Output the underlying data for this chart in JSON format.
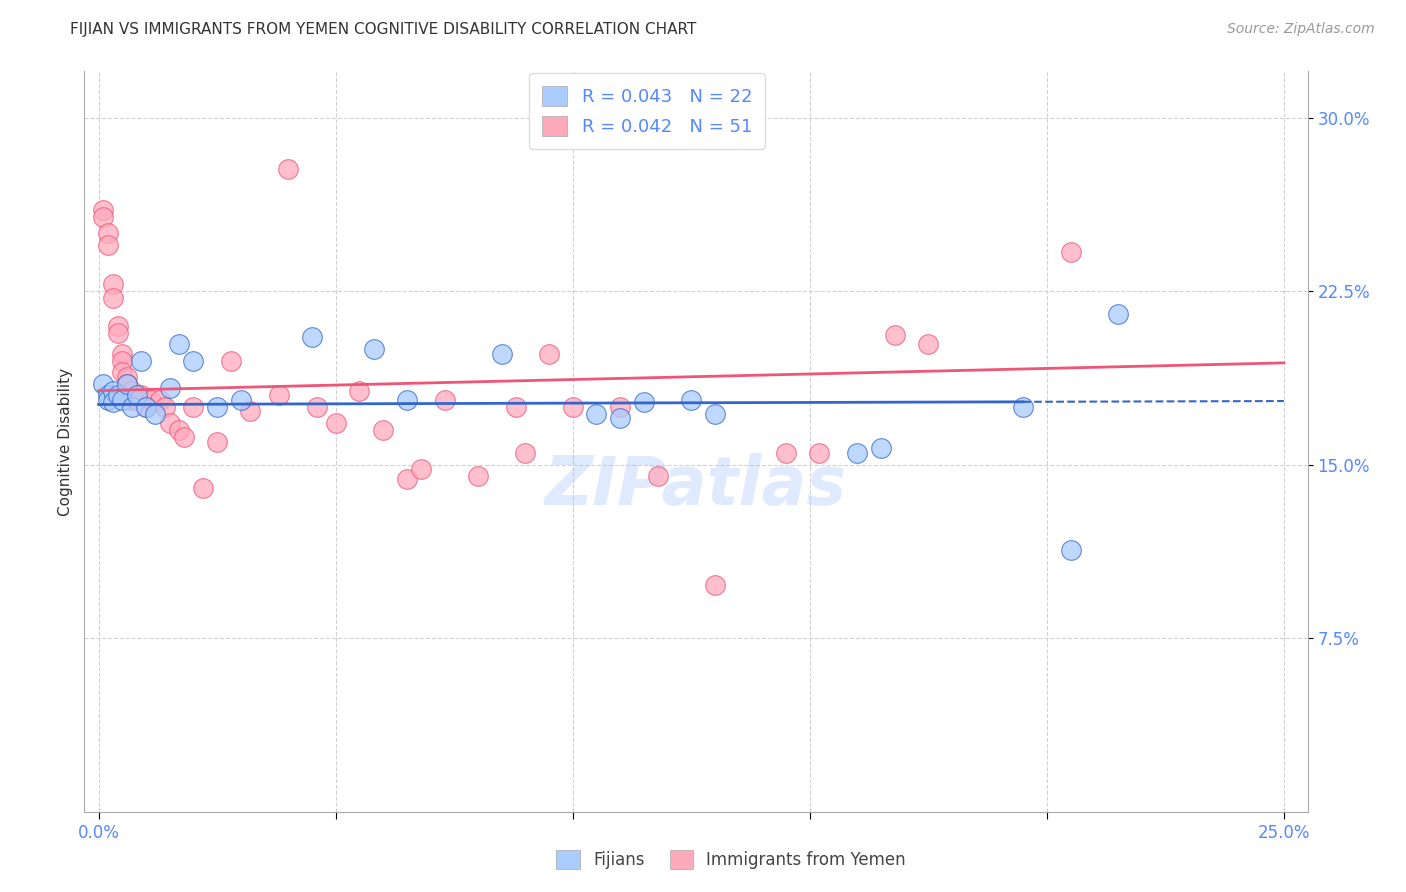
{
  "title": "FIJIAN VS IMMIGRANTS FROM YEMEN COGNITIVE DISABILITY CORRELATION CHART",
  "source": "Source: ZipAtlas.com",
  "ylabel": "Cognitive Disability",
  "xlim": [
    -0.003,
    0.255
  ],
  "ylim": [
    0.0,
    0.32
  ],
  "yticks": [
    0.075,
    0.15,
    0.225,
    0.3
  ],
  "ytick_labels": [
    "7.5%",
    "15.0%",
    "22.5%",
    "30.0%"
  ],
  "xticks": [
    0.0,
    0.05,
    0.1,
    0.15,
    0.2,
    0.25
  ],
  "xtick_labels": [
    "0.0%",
    "",
    "",
    "",
    "",
    "25.0%"
  ],
  "grid_color": "#cccccc",
  "title_color": "#333333",
  "axis_color": "#5588ff",
  "blue_color": "#aaccff",
  "pink_color": "#ffaabb",
  "blue_line_color": "#3366cc",
  "pink_line_color": "#ee5577",
  "blue_line_solid_end": 0.195,
  "blue_line_y0": 0.176,
  "blue_line_y1": 0.1775,
  "pink_line_y0": 0.182,
  "pink_line_y1": 0.194,
  "fijian_points": [
    [
      0.001,
      0.185
    ],
    [
      0.002,
      0.18
    ],
    [
      0.002,
      0.178
    ],
    [
      0.003,
      0.182
    ],
    [
      0.003,
      0.177
    ],
    [
      0.004,
      0.18
    ],
    [
      0.005,
      0.178
    ],
    [
      0.006,
      0.185
    ],
    [
      0.007,
      0.175
    ],
    [
      0.008,
      0.18
    ],
    [
      0.009,
      0.195
    ],
    [
      0.01,
      0.175
    ],
    [
      0.012,
      0.172
    ],
    [
      0.015,
      0.183
    ],
    [
      0.017,
      0.202
    ],
    [
      0.02,
      0.195
    ],
    [
      0.025,
      0.175
    ],
    [
      0.03,
      0.178
    ],
    [
      0.045,
      0.205
    ],
    [
      0.058,
      0.2
    ],
    [
      0.065,
      0.178
    ],
    [
      0.085,
      0.198
    ],
    [
      0.105,
      0.172
    ],
    [
      0.11,
      0.17
    ],
    [
      0.115,
      0.177
    ],
    [
      0.125,
      0.178
    ],
    [
      0.13,
      0.172
    ],
    [
      0.16,
      0.155
    ],
    [
      0.165,
      0.157
    ],
    [
      0.195,
      0.175
    ],
    [
      0.205,
      0.113
    ],
    [
      0.215,
      0.215
    ]
  ],
  "yemen_points": [
    [
      0.001,
      0.26
    ],
    [
      0.001,
      0.257
    ],
    [
      0.002,
      0.25
    ],
    [
      0.002,
      0.245
    ],
    [
      0.003,
      0.228
    ],
    [
      0.003,
      0.222
    ],
    [
      0.004,
      0.21
    ],
    [
      0.004,
      0.207
    ],
    [
      0.005,
      0.198
    ],
    [
      0.005,
      0.195
    ],
    [
      0.005,
      0.19
    ],
    [
      0.006,
      0.188
    ],
    [
      0.006,
      0.185
    ],
    [
      0.007,
      0.182
    ],
    [
      0.007,
      0.178
    ],
    [
      0.008,
      0.178
    ],
    [
      0.009,
      0.18
    ],
    [
      0.01,
      0.175
    ],
    [
      0.011,
      0.178
    ],
    [
      0.013,
      0.178
    ],
    [
      0.014,
      0.175
    ],
    [
      0.015,
      0.168
    ],
    [
      0.017,
      0.165
    ],
    [
      0.018,
      0.162
    ],
    [
      0.02,
      0.175
    ],
    [
      0.022,
      0.14
    ],
    [
      0.025,
      0.16
    ],
    [
      0.028,
      0.195
    ],
    [
      0.032,
      0.173
    ],
    [
      0.038,
      0.18
    ],
    [
      0.04,
      0.278
    ],
    [
      0.046,
      0.175
    ],
    [
      0.05,
      0.168
    ],
    [
      0.055,
      0.182
    ],
    [
      0.06,
      0.165
    ],
    [
      0.065,
      0.144
    ],
    [
      0.068,
      0.148
    ],
    [
      0.073,
      0.178
    ],
    [
      0.08,
      0.145
    ],
    [
      0.088,
      0.175
    ],
    [
      0.09,
      0.155
    ],
    [
      0.095,
      0.198
    ],
    [
      0.1,
      0.175
    ],
    [
      0.11,
      0.175
    ],
    [
      0.118,
      0.145
    ],
    [
      0.13,
      0.098
    ],
    [
      0.145,
      0.155
    ],
    [
      0.152,
      0.155
    ],
    [
      0.168,
      0.206
    ],
    [
      0.175,
      0.202
    ],
    [
      0.205,
      0.242
    ]
  ]
}
